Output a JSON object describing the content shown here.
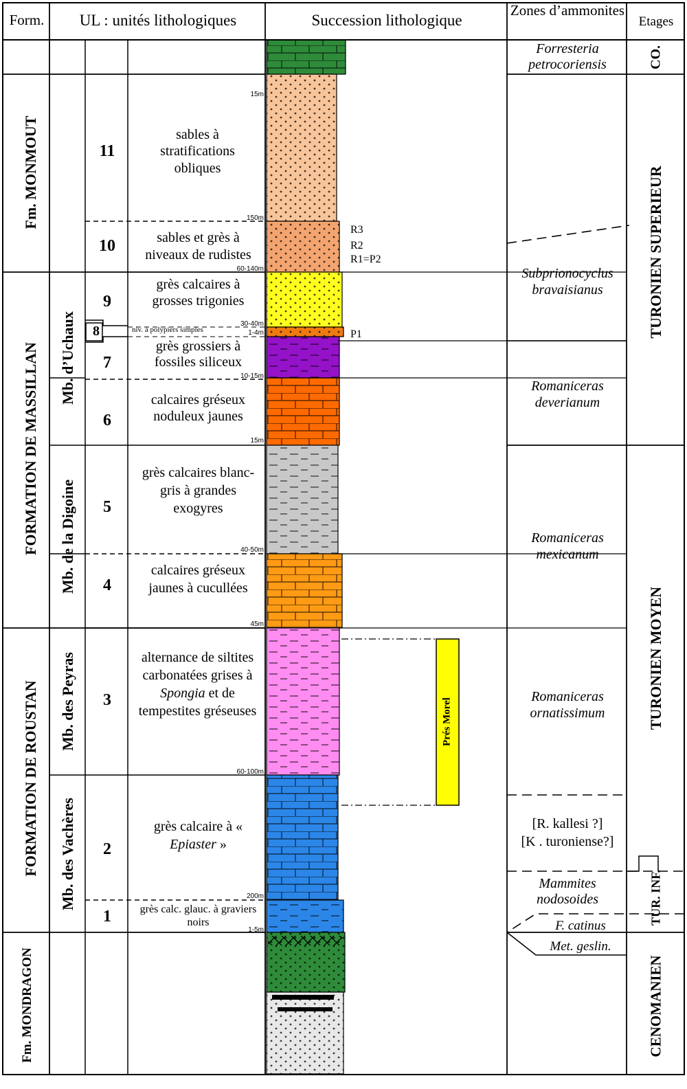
{
  "headers": {
    "form": "Form.",
    "ul": "UL : unités lithologiques",
    "succession": "Succession lithologique",
    "zones": "Zones d’ammonites",
    "etages": "Etages"
  },
  "formations": {
    "monmout": "Fm. MONMOUT",
    "massillan": "FORMATION DE MASSILLAN",
    "roustan": "FORMATION DE ROUSTAN",
    "mondragon": "Fm. MONDRAGON"
  },
  "members": {
    "uchaux": "Mb. d’Uchaux",
    "digoine": "Mb. de la Digoine",
    "peyras": "Mb. des Peyras",
    "vacheres": "Mb. des Vachères"
  },
  "units": [
    {
      "num": "11",
      "desc": "sables à stratifications obliques",
      "thickness": "15m",
      "top_thickness": ""
    },
    {
      "num": "10",
      "desc": "sables et grès à niveaux de rudistes",
      "thickness": "60-140m",
      "top_thickness": "150m"
    },
    {
      "num": "9",
      "desc": "grès calcaires à grosses trigonies",
      "thickness": "30-40m"
    },
    {
      "num": "8",
      "desc": "niv. à polypiers simples",
      "thickness": "1-4m"
    },
    {
      "num": "7",
      "desc": "grès grossiers à fossiles siliceux",
      "thickness": "10-15m"
    },
    {
      "num": "6",
      "desc": "calcaires gréseux noduleux jaunes",
      "thickness": "15m"
    },
    {
      "num": "5",
      "desc": "grès calcaires blanc-gris à grandes exogyres",
      "thickness": "40-50m"
    },
    {
      "num": "4",
      "desc": "calcaires gréseux jaunes à cucullées",
      "thickness": "45m"
    },
    {
      "num": "3",
      "desc_parts": [
        "alternance de siltites carbonatées grises à ",
        "Spongia",
        " et de tempestites gréseuses"
      ],
      "thickness": "60-100m"
    },
    {
      "num": "2",
      "desc_parts": [
        "grès calcaire à « ",
        "Epiaster",
        " »"
      ],
      "thickness": "200m"
    },
    {
      "num": "1",
      "desc": "grès calc. glauc. à graviers noirs",
      "thickness": "1-5m"
    }
  ],
  "markers": {
    "r3": "R3",
    "r2": "R2",
    "r1": "R1=P2",
    "p1": "P1",
    "pres_morel": "Prés Morel"
  },
  "zones": {
    "forresteria": "Forresteria petrocoriensis",
    "subprionocyclus": "Subprionocyclus bravaisianus",
    "deverianum": "Romaniceras deverianum",
    "mexicanum": "Romaniceras mexicanum",
    "ornatissimum": "Romaniceras ornatissimum",
    "kallesi": "[R. kallesi ?]",
    "turoniense": "[K . turoniense?]",
    "mammites": "Mammites nodosoides",
    "catinus": "F. catinus",
    "geslin": "Met. geslin."
  },
  "stages": {
    "co": "CO.",
    "turonien_sup": "TURONIEN SUPERIEUR",
    "turonien_moy": "TURONIEN  MOYEN",
    "tur_inf": "TUR. INF.",
    "cenomanien": "CENOMANIEN"
  },
  "colors": {
    "green": "#2e8b3a",
    "sand": "#f8c49a",
    "sand_dark": "#f3a46f",
    "yellow": "#ffff1e",
    "orange_rudist": "#f07a10",
    "purple": "#9412c8",
    "orange_red": "#ff6a00",
    "gray": "#c8c8c8",
    "orange": "#ff9a14",
    "pink": "#ff8cf0",
    "blue": "#2b86e8",
    "light_gray": "#e8e8e8",
    "pres_morel": "#ffff00"
  }
}
